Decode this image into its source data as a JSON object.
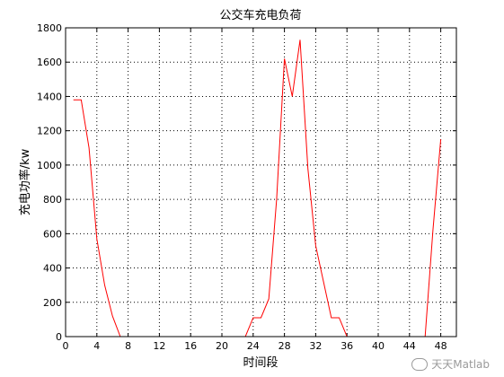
{
  "chart_data": {
    "type": "line",
    "title": "公交车充电负荷",
    "xlabel": "时间段",
    "ylabel": "充电功率/kw",
    "xlim": [
      0,
      50
    ],
    "ylim": [
      0,
      1800
    ],
    "xticks": [
      0,
      4,
      8,
      12,
      16,
      20,
      24,
      28,
      32,
      36,
      40,
      44,
      48
    ],
    "yticks": [
      0,
      200,
      400,
      600,
      800,
      1000,
      1200,
      1400,
      1600,
      1800
    ],
    "grid": true,
    "grid_style": "dotted",
    "series": [
      {
        "color": "#ff0000",
        "x": [
          1,
          2,
          3,
          4,
          5,
          6,
          7,
          8,
          9,
          10,
          11,
          12,
          13,
          14,
          15,
          16,
          17,
          18,
          19,
          20,
          21,
          22,
          23,
          24,
          25,
          26,
          27,
          28,
          29,
          30,
          31,
          32,
          33,
          34,
          35,
          36,
          37,
          38,
          39,
          40,
          41,
          42,
          43,
          44,
          45,
          46,
          47,
          48
        ],
        "y": [
          1380,
          1380,
          1100,
          570,
          300,
          120,
          0,
          0,
          0,
          0,
          0,
          0,
          0,
          0,
          0,
          0,
          0,
          0,
          0,
          0,
          0,
          0,
          0,
          110,
          110,
          220,
          800,
          1620,
          1400,
          1730,
          980,
          530,
          320,
          110,
          110,
          0,
          0,
          0,
          0,
          0,
          0,
          0,
          0,
          0,
          0,
          0,
          620,
          1150
        ]
      }
    ]
  },
  "watermark": {
    "text": "天天Matlab",
    "icon": "wechat-icon"
  }
}
